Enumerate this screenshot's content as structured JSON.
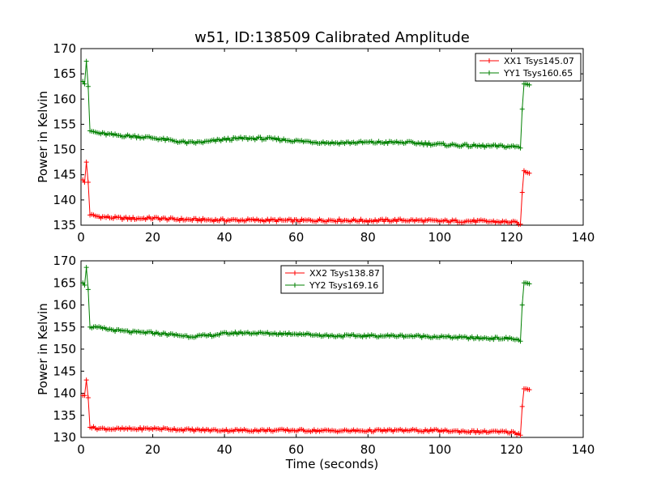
{
  "title": "w51, ID:138509 Calibrated Amplitude",
  "chart_data": [
    {
      "type": "line",
      "title": "w51, ID:138509 Calibrated Amplitude",
      "xlabel": "",
      "ylabel": "Power in Kelvin",
      "xlim": [
        0,
        140
      ],
      "ylim": [
        135,
        170
      ],
      "xticks": [
        0,
        20,
        40,
        60,
        80,
        100,
        120,
        140
      ],
      "yticks": [
        135,
        140,
        145,
        150,
        155,
        160,
        165,
        170
      ],
      "legend_position": "top-right",
      "series": [
        {
          "name": "XX1 Tsys145.07",
          "color": "#ff0000",
          "marker": "plus",
          "points": [
            [
              0.5,
              144.0
            ],
            [
              1.0,
              143.5
            ],
            [
              1.5,
              147.5
            ],
            [
              2.0,
              143.5
            ],
            [
              2.5,
              137.0
            ],
            [
              5,
              136.7
            ],
            [
              10,
              136.4
            ],
            [
              15,
              136.3
            ],
            [
              20,
              136.4
            ],
            [
              25,
              136.2
            ],
            [
              30,
              136.1
            ],
            [
              40,
              136.0
            ],
            [
              50,
              136.0
            ],
            [
              60,
              135.9
            ],
            [
              70,
              136.0
            ],
            [
              80,
              135.9
            ],
            [
              90,
              136.0
            ],
            [
              100,
              135.8
            ],
            [
              110,
              135.8
            ],
            [
              120,
              135.6
            ],
            [
              122,
              135.4
            ],
            [
              122.5,
              135.2
            ],
            [
              123.0,
              141.5
            ],
            [
              123.5,
              145.8
            ],
            [
              124.0,
              145.5
            ],
            [
              125.0,
              145.3
            ]
          ]
        },
        {
          "name": "YY1 Tsys160.65",
          "color": "#008000",
          "marker": "plus",
          "points": [
            [
              0.5,
              163.5
            ],
            [
              1.0,
              163.0
            ],
            [
              1.5,
              167.5
            ],
            [
              2.0,
              162.5
            ],
            [
              2.5,
              153.7
            ],
            [
              5,
              153.2
            ],
            [
              10,
              152.8
            ],
            [
              15,
              152.6
            ],
            [
              20,
              152.3
            ],
            [
              25,
              151.8
            ],
            [
              30,
              151.3
            ],
            [
              35,
              151.5
            ],
            [
              40,
              152.0
            ],
            [
              45,
              152.2
            ],
            [
              50,
              152.2
            ],
            [
              55,
              152.0
            ],
            [
              60,
              151.7
            ],
            [
              70,
              151.3
            ],
            [
              80,
              151.4
            ],
            [
              90,
              151.4
            ],
            [
              100,
              151.0
            ],
            [
              110,
              150.7
            ],
            [
              120,
              150.6
            ],
            [
              122,
              150.5
            ],
            [
              122.5,
              150.3
            ],
            [
              123.0,
              158.0
            ],
            [
              123.5,
              163.0
            ],
            [
              124.0,
              163.0
            ],
            [
              125.0,
              162.8
            ]
          ]
        }
      ]
    },
    {
      "type": "line",
      "title": "",
      "xlabel": "Time (seconds)",
      "ylabel": "Power in Kelvin",
      "xlim": [
        0,
        140
      ],
      "ylim": [
        130,
        170
      ],
      "xticks": [
        0,
        20,
        40,
        60,
        80,
        100,
        120,
        140
      ],
      "yticks": [
        130,
        135,
        140,
        145,
        150,
        155,
        160,
        165,
        170
      ],
      "legend_position": "top-center",
      "series": [
        {
          "name": "XX2 Tsys138.87",
          "color": "#ff0000",
          "marker": "plus",
          "points": [
            [
              0.5,
              139.5
            ],
            [
              1.0,
              139.5
            ],
            [
              1.5,
              143.0
            ],
            [
              2.0,
              139.0
            ],
            [
              2.5,
              132.3
            ],
            [
              5,
              132.0
            ],
            [
              10,
              131.9
            ],
            [
              15,
              131.9
            ],
            [
              20,
              132.0
            ],
            [
              25,
              131.9
            ],
            [
              30,
              131.7
            ],
            [
              40,
              131.6
            ],
            [
              50,
              131.6
            ],
            [
              60,
              131.6
            ],
            [
              70,
              131.5
            ],
            [
              80,
              131.5
            ],
            [
              90,
              131.6
            ],
            [
              100,
              131.5
            ],
            [
              110,
              131.3
            ],
            [
              120,
              131.2
            ],
            [
              122,
              130.8
            ],
            [
              122.5,
              130.5
            ],
            [
              123.0,
              137.0
            ],
            [
              123.5,
              141.0
            ],
            [
              124.0,
              141.0
            ],
            [
              125.0,
              140.8
            ]
          ]
        },
        {
          "name": "YY2 Tsys169.16",
          "color": "#008000",
          "marker": "plus",
          "points": [
            [
              0.5,
              165.0
            ],
            [
              1.0,
              164.5
            ],
            [
              1.5,
              168.5
            ],
            [
              2.0,
              163.5
            ],
            [
              2.5,
              155.0
            ],
            [
              5,
              154.8
            ],
            [
              10,
              154.2
            ],
            [
              15,
              153.8
            ],
            [
              20,
              153.7
            ],
            [
              25,
              153.3
            ],
            [
              30,
              152.9
            ],
            [
              35,
              153.0
            ],
            [
              40,
              153.5
            ],
            [
              45,
              153.7
            ],
            [
              50,
              153.6
            ],
            [
              55,
              153.5
            ],
            [
              60,
              153.5
            ],
            [
              70,
              153.0
            ],
            [
              80,
              153.0
            ],
            [
              90,
              153.0
            ],
            [
              100,
              152.8
            ],
            [
              110,
              152.5
            ],
            [
              120,
              152.4
            ],
            [
              122,
              152.0
            ],
            [
              122.5,
              151.8
            ],
            [
              123.0,
              160.0
            ],
            [
              123.5,
              165.0
            ],
            [
              124.0,
              165.0
            ],
            [
              125.0,
              164.8
            ]
          ]
        }
      ]
    }
  ]
}
